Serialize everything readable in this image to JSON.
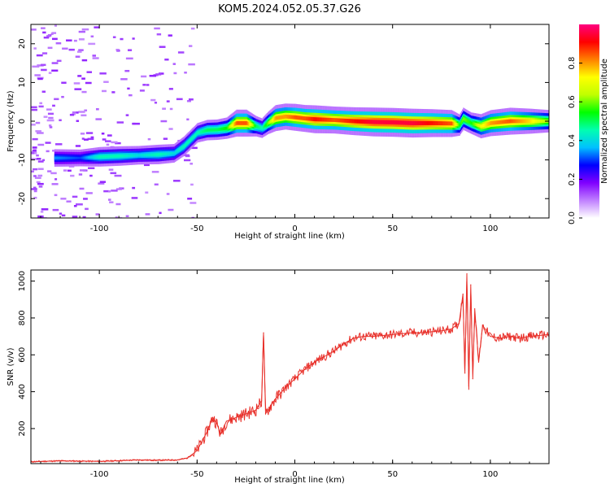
{
  "title": "KOM5.2024.052.05.37.G26",
  "chart_data": [
    {
      "type": "heatmap",
      "xlabel": "Height of straight line (km)",
      "ylabel": "Frequency (Hz)",
      "xlim": [
        -135,
        130
      ],
      "ylim": [
        -25,
        25
      ],
      "xticks": [
        -100,
        -50,
        0,
        50,
        100
      ],
      "yticks": [
        -20,
        -10,
        0,
        10,
        20
      ],
      "colorbar": {
        "label": "Normalized spectral amplitude",
        "range": [
          0,
          1
        ],
        "ticks": [
          "0.0",
          "0.2",
          "0.4",
          "0.6",
          "0.8"
        ],
        "colors": [
          "#ffffff",
          "#c080ff",
          "#8000ff",
          "#0000ff",
          "#00c0ff",
          "#00ffb0",
          "#00ff00",
          "#c0ff00",
          "#ffff00",
          "#ff8000",
          "#ff0000",
          "#ff0080"
        ]
      },
      "ridge": {
        "x": [
          -125,
          -110,
          -100,
          -90,
          -80,
          -70,
          -62,
          -57,
          -54,
          -50,
          -45,
          -40,
          -35,
          -30,
          -25,
          -20,
          -17,
          -14,
          -10,
          -5,
          0,
          5,
          10,
          20,
          30,
          40,
          50,
          60,
          70,
          80,
          84,
          86,
          90,
          95,
          100,
          110,
          120,
          130
        ],
        "freq": [
          -9.5,
          -9.5,
          -9.2,
          -9,
          -8.8,
          -8.6,
          -8.3,
          -6.5,
          -5,
          -3,
          -2.3,
          -2.2,
          -1.8,
          -0.5,
          -0.5,
          -1.3,
          -1.8,
          -0.5,
          0.8,
          1.2,
          1,
          0.7,
          0.5,
          0.3,
          0,
          -0.2,
          -0.3,
          -0.5,
          -0.5,
          -0.6,
          -1,
          0.6,
          -0.5,
          -1.3,
          -0.5,
          0,
          0,
          0
        ],
        "peak_amplitude": [
          0.35,
          0.3,
          0.45,
          0.45,
          0.4,
          0.45,
          0.4,
          0.45,
          0.45,
          0.45,
          0.5,
          0.5,
          0.55,
          0.85,
          0.85,
          0.5,
          0.45,
          0.6,
          0.8,
          0.8,
          0.85,
          0.85,
          0.9,
          0.85,
          0.9,
          0.95,
          0.95,
          0.95,
          0.9,
          0.85,
          0.55,
          0.6,
          0.55,
          0.7,
          0.8,
          0.85,
          0.75,
          0.6
        ]
      }
    },
    {
      "type": "line",
      "xlabel": "Height of straight line (km)",
      "ylabel": "SNR (v/v)",
      "xlim": [
        -135,
        130
      ],
      "ylim": [
        10,
        1060
      ],
      "xticks": [
        -100,
        -50,
        0,
        50,
        100
      ],
      "yticks": [
        200,
        400,
        600,
        800,
        1000
      ],
      "series": [
        {
          "color": "#e8302a",
          "x": [
            -135,
            -120,
            -100,
            -80,
            -70,
            -60,
            -55,
            -50,
            -45,
            -42,
            -40,
            -38,
            -35,
            -30,
            -25,
            -20,
            -17,
            -16,
            -15,
            -12,
            -10,
            -5,
            0,
            5,
            10,
            15,
            20,
            25,
            30,
            35,
            40,
            45,
            50,
            55,
            60,
            65,
            70,
            75,
            80,
            84,
            86,
            87,
            88,
            89,
            90,
            91,
            92,
            94,
            96,
            100,
            105,
            110,
            115,
            120,
            125,
            130
          ],
          "y": [
            20,
            25,
            22,
            30,
            28,
            30,
            40,
            80,
            180,
            260,
            230,
            170,
            240,
            260,
            280,
            300,
            350,
            720,
            280,
            330,
            360,
            420,
            470,
            520,
            560,
            590,
            620,
            660,
            690,
            700,
            700,
            705,
            710,
            715,
            720,
            720,
            725,
            730,
            740,
            770,
            930,
            500,
            1040,
            430,
            980,
            470,
            850,
            560,
            760,
            700,
            690,
            700,
            690,
            700,
            705,
            710
          ]
        }
      ]
    }
  ]
}
